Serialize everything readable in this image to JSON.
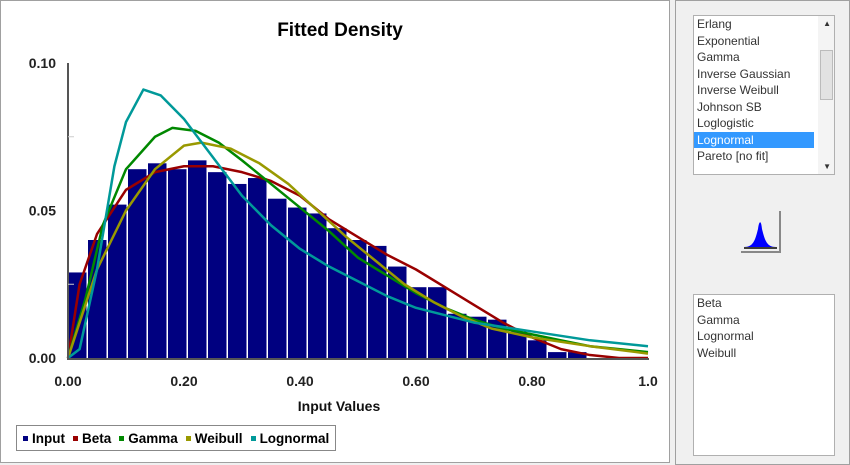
{
  "chart_data": {
    "type": "bar",
    "title": "Fitted Density",
    "xlabel": "Input Values",
    "ylabel": "",
    "xlim": [
      0,
      1.0
    ],
    "ylim": [
      0,
      0.1
    ],
    "x_ticks": [
      "0.00",
      "0.20",
      "0.40",
      "0.60",
      "0.80",
      "1.0"
    ],
    "y_ticks": [
      "0.00",
      "0.05",
      "0.10"
    ],
    "grid": false,
    "legend_position": "bottom-left",
    "histogram": {
      "name": "Input",
      "color": "#000080",
      "bin_start": 0,
      "bin_end": 1.0,
      "values": [
        0.029,
        0.04,
        0.052,
        0.064,
        0.066,
        0.064,
        0.067,
        0.063,
        0.059,
        0.061,
        0.054,
        0.051,
        0.049,
        0.044,
        0.04,
        0.038,
        0.031,
        0.024,
        0.024,
        0.015,
        0.014,
        0.013,
        0.009,
        0.006,
        0.002,
        0.002,
        0,
        0,
        0
      ]
    },
    "series": [
      {
        "name": "Beta",
        "color": "#990000",
        "points": [
          [
            0,
            0
          ],
          [
            0.02,
            0.025
          ],
          [
            0.05,
            0.042
          ],
          [
            0.1,
            0.057
          ],
          [
            0.15,
            0.063
          ],
          [
            0.2,
            0.065
          ],
          [
            0.25,
            0.065
          ],
          [
            0.3,
            0.063
          ],
          [
            0.35,
            0.06
          ],
          [
            0.4,
            0.055
          ],
          [
            0.45,
            0.047
          ],
          [
            0.5,
            0.041
          ],
          [
            0.55,
            0.035
          ],
          [
            0.6,
            0.03
          ],
          [
            0.65,
            0.024
          ],
          [
            0.7,
            0.018
          ],
          [
            0.75,
            0.012
          ],
          [
            0.8,
            0.007
          ],
          [
            0.85,
            0.003
          ],
          [
            0.9,
            0.001
          ],
          [
            0.95,
            0
          ],
          [
            1.0,
            0
          ]
        ]
      },
      {
        "name": "Gamma",
        "color": "#008800",
        "points": [
          [
            0,
            0
          ],
          [
            0.03,
            0.02
          ],
          [
            0.06,
            0.045
          ],
          [
            0.1,
            0.064
          ],
          [
            0.15,
            0.075
          ],
          [
            0.18,
            0.078
          ],
          [
            0.22,
            0.077
          ],
          [
            0.26,
            0.073
          ],
          [
            0.3,
            0.067
          ],
          [
            0.35,
            0.059
          ],
          [
            0.4,
            0.051
          ],
          [
            0.45,
            0.043
          ],
          [
            0.5,
            0.034
          ],
          [
            0.55,
            0.028
          ],
          [
            0.6,
            0.022
          ],
          [
            0.65,
            0.017
          ],
          [
            0.7,
            0.013
          ],
          [
            0.75,
            0.01
          ],
          [
            0.8,
            0.008
          ],
          [
            0.85,
            0.006
          ],
          [
            0.9,
            0.004
          ],
          [
            0.95,
            0.003
          ],
          [
            1.0,
            0.002
          ]
        ]
      },
      {
        "name": "Weibull",
        "color": "#999900",
        "points": [
          [
            0,
            0
          ],
          [
            0.05,
            0.03
          ],
          [
            0.1,
            0.05
          ],
          [
            0.15,
            0.064
          ],
          [
            0.2,
            0.072
          ],
          [
            0.23,
            0.073
          ],
          [
            0.28,
            0.071
          ],
          [
            0.33,
            0.066
          ],
          [
            0.38,
            0.059
          ],
          [
            0.43,
            0.05
          ],
          [
            0.48,
            0.041
          ],
          [
            0.53,
            0.033
          ],
          [
            0.58,
            0.025
          ],
          [
            0.63,
            0.019
          ],
          [
            0.68,
            0.014
          ],
          [
            0.73,
            0.01
          ],
          [
            0.8,
            0.007
          ],
          [
            0.9,
            0.004
          ],
          [
            1.0,
            0.0015
          ]
        ]
      },
      {
        "name": "Lognormal",
        "color": "#009999",
        "points": [
          [
            0,
            0
          ],
          [
            0.02,
            0.003
          ],
          [
            0.05,
            0.03
          ],
          [
            0.08,
            0.065
          ],
          [
            0.1,
            0.08
          ],
          [
            0.13,
            0.091
          ],
          [
            0.16,
            0.089
          ],
          [
            0.2,
            0.081
          ],
          [
            0.25,
            0.068
          ],
          [
            0.3,
            0.055
          ],
          [
            0.35,
            0.045
          ],
          [
            0.4,
            0.037
          ],
          [
            0.45,
            0.031
          ],
          [
            0.5,
            0.026
          ],
          [
            0.55,
            0.021
          ],
          [
            0.6,
            0.017
          ],
          [
            0.7,
            0.012
          ],
          [
            0.8,
            0.009
          ],
          [
            0.9,
            0.006
          ],
          [
            1.0,
            0.004
          ]
        ]
      }
    ]
  },
  "legend": [
    "Input",
    "Beta",
    "Gamma",
    "Weibull",
    "Lognormal"
  ],
  "distribution_list": {
    "items": [
      "Erlang",
      "Exponential",
      "Gamma",
      "Inverse Gaussian",
      "Inverse Weibull",
      "Johnson SB",
      "Loglogistic",
      "Lognormal",
      "Pareto [no fit]"
    ],
    "selected": "Lognormal",
    "selection_color": "#3399ff"
  },
  "fit_button_icon": "distribution-curve-icon",
  "fitted_list": {
    "items": [
      "Beta",
      "Gamma",
      "Lognormal",
      "Weibull"
    ]
  }
}
